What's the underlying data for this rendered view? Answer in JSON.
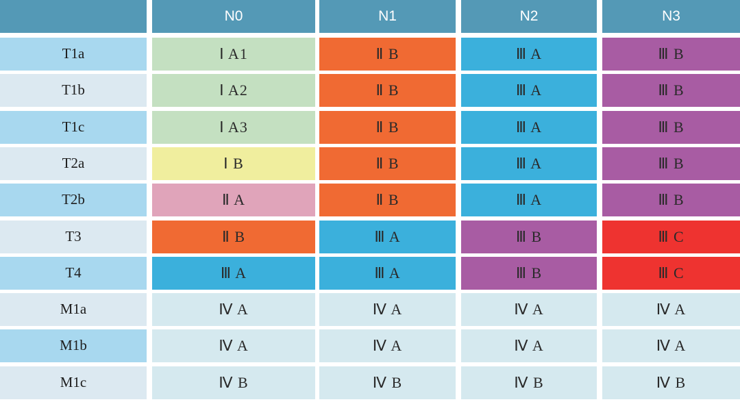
{
  "chart_data": {
    "type": "table",
    "columns": [
      "",
      "N0",
      "N1",
      "N2",
      "N3"
    ],
    "rows": [
      {
        "label": "T1a",
        "cells": [
          "Ⅰ A1",
          "Ⅱ B",
          "Ⅲ A",
          "Ⅲ B"
        ]
      },
      {
        "label": "T1b",
        "cells": [
          "Ⅰ A2",
          "Ⅱ B",
          "Ⅲ A",
          "Ⅲ B"
        ]
      },
      {
        "label": "T1c",
        "cells": [
          "Ⅰ A3",
          "Ⅱ B",
          "Ⅲ A",
          "Ⅲ B"
        ]
      },
      {
        "label": "T2a",
        "cells": [
          "Ⅰ B",
          "Ⅱ B",
          "Ⅲ A",
          "Ⅲ B"
        ]
      },
      {
        "label": "T2b",
        "cells": [
          "Ⅱ A",
          "Ⅱ B",
          "Ⅲ A",
          "Ⅲ B"
        ]
      },
      {
        "label": "T3",
        "cells": [
          "Ⅱ B",
          "Ⅲ A",
          "Ⅲ B",
          "Ⅲ C"
        ]
      },
      {
        "label": "T4",
        "cells": [
          "Ⅲ A",
          "Ⅲ A",
          "Ⅲ B",
          "Ⅲ C"
        ]
      },
      {
        "label": "M1a",
        "cells": [
          "Ⅳ A",
          "Ⅳ A",
          "Ⅳ A",
          "Ⅳ A"
        ]
      },
      {
        "label": "M1b",
        "cells": [
          "Ⅳ A",
          "Ⅳ A",
          "Ⅳ A",
          "Ⅳ A"
        ]
      },
      {
        "label": "M1c",
        "cells": [
          "Ⅳ B",
          "Ⅳ B",
          "Ⅳ B",
          "Ⅳ B"
        ]
      }
    ],
    "colors": {
      "header": "#5499b6",
      "row_label_dark": "#a8d8ef",
      "row_label_light": "#dce9f1",
      "Ⅰ A1": "#c4e0c1",
      "Ⅰ A2": "#c4e0c1",
      "Ⅰ A3": "#c4e0c1",
      "Ⅰ B": "#f0ee9e",
      "Ⅱ A": "#e0a4ba",
      "Ⅱ B": "#f06a33",
      "Ⅲ A": "#3bb0dc",
      "Ⅲ B": "#a85ca3",
      "Ⅲ C": "#ee3330",
      "Ⅳ A": "#d5e9ef",
      "Ⅳ B": "#d5e9ef"
    }
  }
}
